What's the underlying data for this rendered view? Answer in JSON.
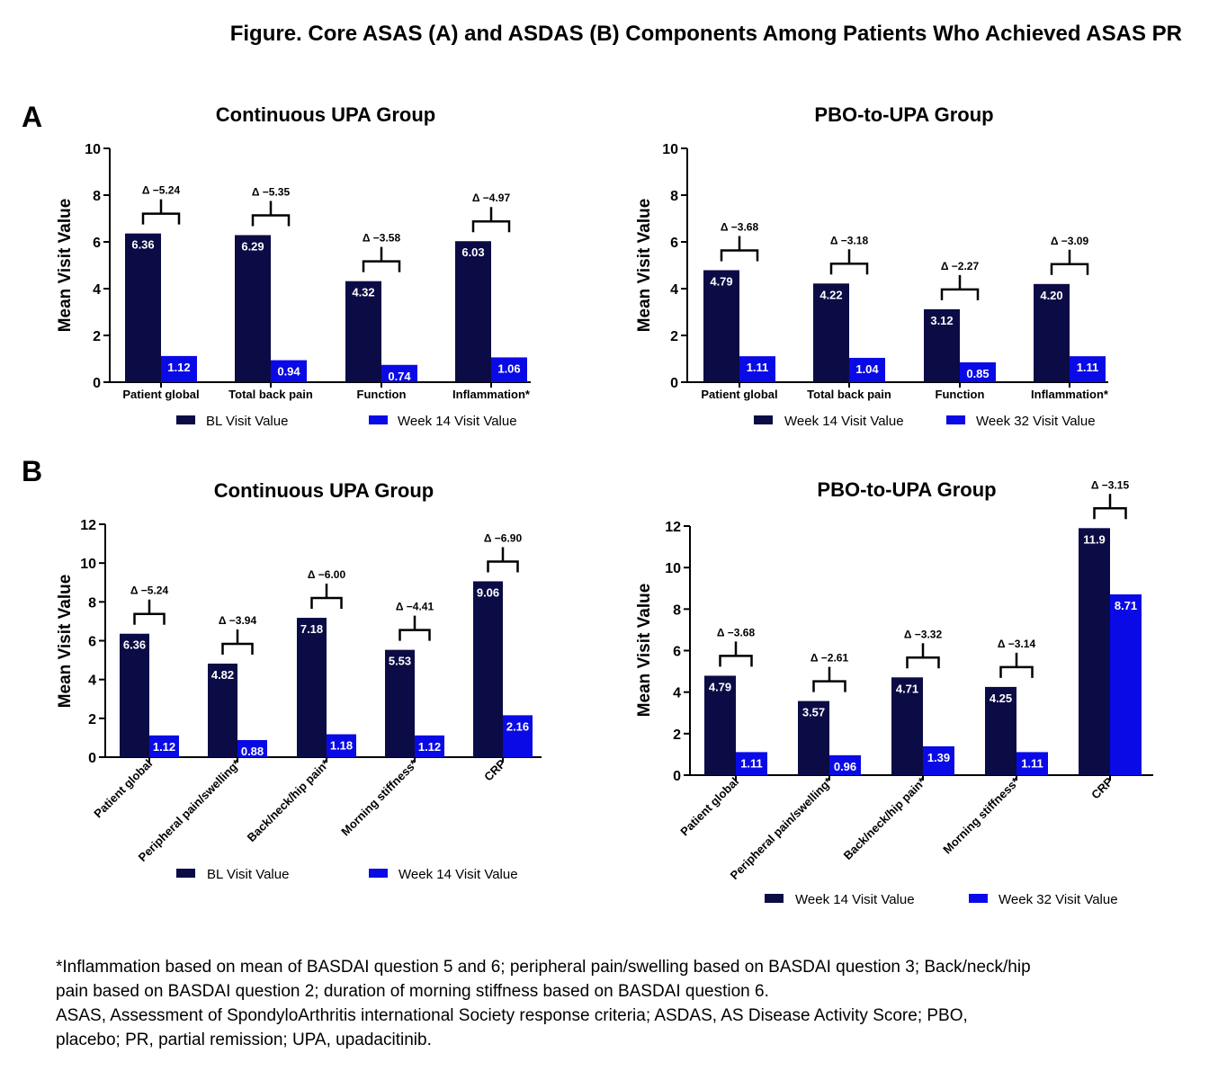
{
  "figure": {
    "title": "Figure. Core ASAS (A) and ASDAS (B) Components Among Patients Who Achieved ASAS PR",
    "panel_a_label": "A",
    "panel_b_label": "B",
    "footnotes": [
      "*Inflammation based on mean of BASDAI question 5 and 6; peripheral pain/swelling based on BASDAI question 3; Back/neck/hip",
      "pain based on BASDAI question 2; duration of morning stiffness based on BASDAI question 6.",
      "ASAS, Assessment of SpondyloArthritis international Society response criteria; ASDAS, AS Disease Activity Score; PBO,",
      "placebo; PR, partial remission; UPA, upadacitinib."
    ]
  },
  "colors": {
    "dark": "#0b0b45",
    "blue": "#0a0ae6"
  },
  "chart_data": [
    {
      "type": "bar",
      "title": "Continuous UPA Group",
      "ylabel": "Mean Visit Value",
      "ylim": [
        0,
        10
      ],
      "yticks": [
        "0",
        "2",
        "4",
        "6",
        "8",
        "10"
      ],
      "categories": [
        "Patient global",
        "Total back pain",
        "Function",
        "Inflammation*"
      ],
      "series": [
        {
          "name": "BL Visit Value",
          "values": [
            6.36,
            6.29,
            4.32,
            6.03
          ],
          "labels": [
            "6.36",
            "6.29",
            "4.32",
            "6.03"
          ]
        },
        {
          "name": "Week 14 Visit Value",
          "values": [
            1.12,
            0.94,
            0.74,
            1.06
          ],
          "labels": [
            "1.12",
            "0.94",
            "0.74",
            "1.06"
          ]
        }
      ],
      "deltas": [
        "Δ −5.24",
        "Δ −5.35",
        "Δ −3.58",
        "Δ −4.97"
      ]
    },
    {
      "type": "bar",
      "title": "PBO-to-UPA Group",
      "ylabel": "Mean Visit Value",
      "ylim": [
        0,
        10
      ],
      "yticks": [
        "0",
        "2",
        "4",
        "6",
        "8",
        "10"
      ],
      "categories": [
        "Patient global",
        "Total back pain",
        "Function",
        "Inflammation*"
      ],
      "series": [
        {
          "name": "Week 14 Visit Value",
          "values": [
            4.79,
            4.22,
            3.12,
            4.2
          ],
          "labels": [
            "4.79",
            "4.22",
            "3.12",
            "4.20"
          ]
        },
        {
          "name": "Week 32 Visit Value",
          "values": [
            1.11,
            1.04,
            0.85,
            1.11
          ],
          "labels": [
            "1.11",
            "1.04",
            "0.85",
            "1.11"
          ]
        }
      ],
      "deltas": [
        "Δ −3.68",
        "Δ −3.18",
        "Δ −2.27",
        "Δ −3.09"
      ]
    },
    {
      "type": "bar",
      "title": "Continuous UPA Group",
      "ylabel": "Mean Visit Value",
      "ylim": [
        0,
        12
      ],
      "yticks": [
        "0",
        "2",
        "4",
        "6",
        "8",
        "10",
        "12"
      ],
      "categories": [
        "Patient global",
        "Peripheral pain/swelling*",
        "Back/neck/hip pain*",
        "Morning stiffness*",
        "CRP"
      ],
      "series": [
        {
          "name": "BL Visit Value",
          "values": [
            6.36,
            4.82,
            7.18,
            5.53,
            9.06
          ],
          "labels": [
            "6.36",
            "4.82",
            "7.18",
            "5.53",
            "9.06"
          ]
        },
        {
          "name": "Week 14 Visit Value",
          "values": [
            1.12,
            0.88,
            1.18,
            1.12,
            2.16
          ],
          "labels": [
            "1.12",
            "0.88",
            "1.18",
            "1.12",
            "2.16"
          ]
        }
      ],
      "deltas": [
        "Δ −5.24",
        "Δ −3.94",
        "Δ −6.00",
        "Δ −4.41",
        "Δ −6.90"
      ]
    },
    {
      "type": "bar",
      "title": "PBO-to-UPA Group",
      "ylabel": "Mean Visit Value",
      "ylim": [
        0,
        12
      ],
      "yticks": [
        "0",
        "2",
        "4",
        "6",
        "8",
        "10",
        "12"
      ],
      "categories": [
        "Patient global",
        "Peripheral pain/swelling*",
        "Back/neck/hip pain*",
        "Morning stiffness*",
        "CRP"
      ],
      "series": [
        {
          "name": "Week 14 Visit Value",
          "values": [
            4.79,
            3.57,
            4.71,
            4.25,
            11.9
          ],
          "labels": [
            "4.79",
            "3.57",
            "4.71",
            "4.25",
            "11.9"
          ]
        },
        {
          "name": "Week 32 Visit Value",
          "values": [
            1.11,
            0.96,
            1.39,
            1.11,
            8.71
          ],
          "labels": [
            "1.11",
            "0.96",
            "1.39",
            "1.11",
            "8.71"
          ]
        }
      ],
      "deltas": [
        "Δ −3.68",
        "Δ −2.61",
        "Δ −3.32",
        "Δ −3.14",
        "Δ −3.15"
      ]
    }
  ]
}
